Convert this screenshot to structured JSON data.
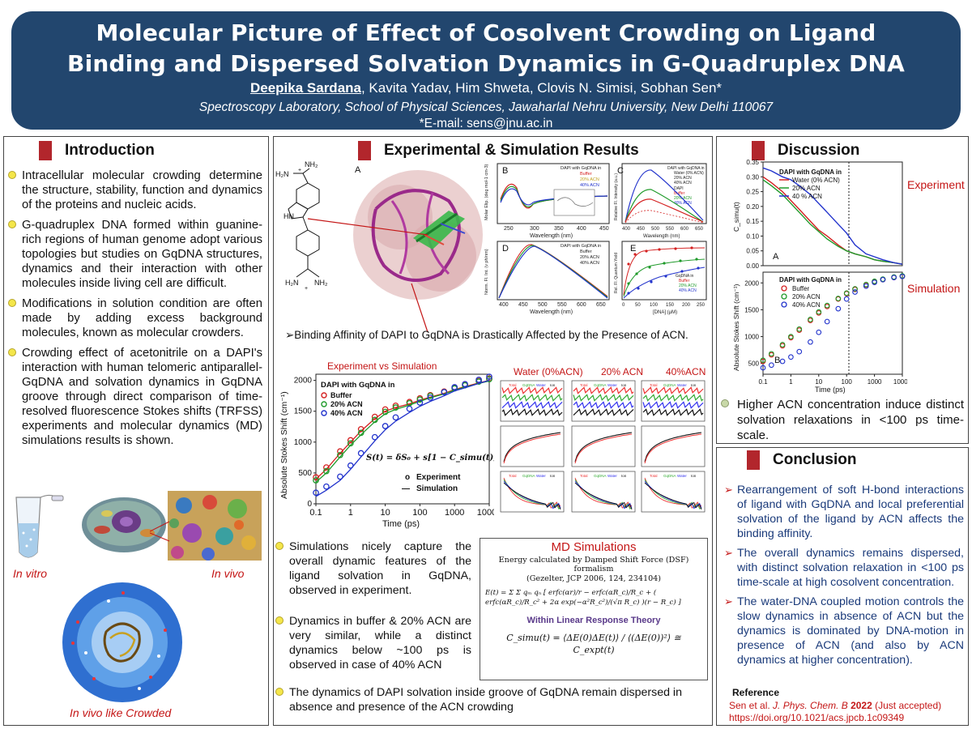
{
  "header": {
    "title_line1": "Molecular Picture of Effect of Cosolvent Crowding on Ligand",
    "title_line2": "Binding and Dispersed Solvation Dynamics in G-Quadruplex DNA",
    "first_author": "Deepika Sardana",
    "other_authors": ", Kavita Yadav, Him Shweta, Clovis N. Simisi, Sobhan Sen*",
    "affiliation": "Spectroscopy Laboratory, School of Physical Sciences, Jawaharlal Nehru University, New Delhi 110067",
    "email": "*E-mail: sens@jnu.ac.in"
  },
  "intro": {
    "heading": "Introduction",
    "bullets": [
      "Intracellular molecular crowding determine the structure, stability, function and dynamics of the proteins and nucleic acids.",
      "G-quadruplex DNA formed within guanine-rich regions of human genome adopt various topologies but studies on GqDNA structures, dynamics and their interaction with other molecules inside living cell are difficult.",
      "Modifications in solution condition are often made by adding excess background molecules, known as molecular crowders.",
      "Crowding effect of acetonitrile on a DAPI's interaction with human telomeric antiparallel-GqDNA and solvation dynamics in GqDNA groove through direct comparison of time-resolved fluorescence Stokes shifts (TRFSS) experiments and molecular dynamics (MD) simulations results is shown."
    ],
    "in_vitro": "In vitro",
    "in_vivo": "In vivo",
    "in_vivo_crowded": "In vivo like Crowded"
  },
  "results": {
    "heading": "Experimental & Simulation Results",
    "panel_a": "A",
    "panel_b": "B",
    "panel_c": "C",
    "panel_d": "D",
    "panel_e": "E",
    "binding_caption": "➢Binding Affinity of DAPI to GqDNA is Drastically Affected by the Presence of ACN.",
    "dapi_legend": "DAPI with GqDNA in",
    "buffer": "Buffer",
    "acn20": "20% ACN",
    "acn40": "40% ACN",
    "gqdna_in": "GqDNA in",
    "b_ylabel": "Molar Elip. (deg mol-1 cm-3)",
    "cd_xlabel": "Wavelength (nm)",
    "b_xticks": [
      "250",
      "300",
      "350",
      "400",
      "450"
    ],
    "c_ylabel": "Relative Fl. Intensity (a.u.)",
    "c_xticks": [
      "400",
      "450",
      "500",
      "550",
      "600",
      "650"
    ],
    "c_legend_water": "Water (0% ACN)",
    "c_legend_dapi": "DAPI",
    "d_ylabel": "Norm. Fl. Int. (ν ph/nm)",
    "d_xticks": [
      "400",
      "450",
      "500",
      "550",
      "600",
      "650"
    ],
    "e_ylabel": "Rel. Fl. Quantum Yield",
    "e_xlabel": "[DNA] (μM)",
    "e_xticks": [
      "0",
      "50",
      "100",
      "150",
      "200",
      "250"
    ],
    "exp_vs_sim": "Experiment vs Simulation",
    "ylabel_stokes": "Absolute Stokes Shift (cm⁻¹)",
    "xlabel_time": "Time (ps)",
    "stokes_yticks": [
      "0",
      "500",
      "1000",
      "1500",
      "2000"
    ],
    "stokes_xticks": [
      "0.1",
      "1",
      "10",
      "100",
      "1000",
      "10000"
    ],
    "equation": "S(t) = δS₀ + s[1 − C_simu(t)]",
    "legend_experiment": "Experiment",
    "legend_simulation": "Simulation",
    "legend_o": "o",
    "legend_dash": "—",
    "md_col_water": "Water (0%ACN)",
    "md_col_20": "20% ACN",
    "md_col_40": "40%ACN",
    "md_sub_labels": [
      "Total",
      "GqDNA",
      "Water",
      "Ion"
    ],
    "bullets": [
      "Simulations nicely capture the overall dynamic features of the ligand solvation in GqDNA, observed in experiment.",
      "Dynamics in buffer & 20% ACN are very similar, while a distinct dynamics below ~100 ps is observed in case of 40% ACN"
    ],
    "final_bullet": "The dynamics of DAPI solvation inside groove of GqDNA remain dispersed in absence and presence of the ACN crowding"
  },
  "md_box": {
    "title": "MD Simulations",
    "line1": "Energy calculated by Damped Shift Force (DSF) formalism",
    "line2": "(Gezelter, JCP 2006, 124, 234104)",
    "energy_eq": "E(t) = Σ Σ qₘ qₙ [ erfc(αr)/r − erfc(αR_c)/R_c + ( erfc(αR_c)/R_c² + 2α exp(−α²R_c²)/(√π R_c) )(r − R_c) ]",
    "within": "Within Linear Response Theory",
    "csimu_eq": "C_simu(t) = ⟨ΔE(0)ΔE(t)⟩ / ⟨(ΔE(0))²⟩ ≅ C_expt(t)"
  },
  "discussion": {
    "heading": "Discussion",
    "experiment": "Experiment",
    "simulation": "Simulation",
    "legend_title": "DAPI with GqDNA in",
    "water": "Water (0% ACN)",
    "acn20": "20% ACN",
    "acn40": "40 % ACN",
    "sim_legend_title": "DAPI with GqDNA in",
    "sim_buffer": "Buffer",
    "sim_acn20": "20% ACN",
    "sim_acn40": "40% ACN",
    "panel_a": "A",
    "panel_b": "B",
    "ylabel_top": "C_simu(t)",
    "ylabel_bottom": "Absolute Stokes Shift (cm⁻¹)",
    "xlabel": "Time (ps)",
    "yticks_top": [
      "0.35",
      "0.30",
      "0.25",
      "0.20",
      "0.15",
      "0.10",
      "0.05",
      "0.00"
    ],
    "yticks_bottom": [
      "500",
      "1000",
      "1500",
      "2000"
    ],
    "xticks": [
      "0.1",
      "1",
      "10",
      "100",
      "1000",
      "10000"
    ],
    "bullet": "Higher ACN concentration induce distinct solvation relaxations in <100 ps time-scale."
  },
  "conclusion": {
    "heading": "Conclusion",
    "bullets": [
      "Rearrangement of soft H-bond interactions of ligand with GqDNA and local preferential solvation of the ligand by ACN affects the binding affinity.",
      "The overall dynamics remains dispersed, with distinct solvation relaxation in <100 ps time-scale at high cosolvent concentration.",
      "The water-DNA coupled motion controls the slow dynamics in absence of ACN but the dynamics is dominated by DNA-motion in presence of ACN (and also by ACN dynamics at higher concentration)."
    ],
    "reference_label": "Reference",
    "ref_authors": "Sen et al. ",
    "ref_journal": "J. Phys. Chem. B",
    "ref_year": " 2022",
    "ref_note": " (Just accepted)",
    "ref_doi": "https://doi.org/10.1021/acs.jpcb.1c09349"
  },
  "colors": {
    "header_bg": "#22466e",
    "accent_red": "#b2262c",
    "buffer": "#d42020",
    "acn20": "#1f9a2a",
    "acn40": "#2233cc"
  },
  "chart_data": [
    {
      "type": "scatter",
      "title": "Experiment vs Simulation",
      "xlabel": "Time (ps)",
      "ylabel": "Absolute Stokes Shift (cm-1)",
      "xscale": "log",
      "xlim": [
        0.1,
        10000
      ],
      "ylim": [
        0,
        2100
      ],
      "x": [
        0.1,
        0.2,
        0.5,
        1,
        2,
        5,
        10,
        20,
        50,
        100,
        200,
        500,
        1000,
        2000,
        5000,
        10000
      ],
      "series": [
        {
          "name": "Buffer",
          "values": [
            400,
            560,
            820,
            1000,
            1180,
            1380,
            1500,
            1560,
            1620,
            1680,
            1730,
            1790,
            1850,
            1900,
            1960,
            2000
          ]
        },
        {
          "name": "20% ACN",
          "values": [
            350,
            500,
            760,
            950,
            1120,
            1330,
            1460,
            1530,
            1600,
            1660,
            1720,
            1780,
            1840,
            1890,
            1950,
            1990
          ]
        },
        {
          "name": "40% ACN",
          "values": [
            120,
            220,
            380,
            560,
            760,
            1020,
            1200,
            1340,
            1480,
            1580,
            1660,
            1750,
            1830,
            1880,
            1950,
            2000
          ]
        }
      ]
    },
    {
      "type": "line",
      "title": "Discussion A",
      "xlabel": "Time (ps)",
      "ylabel": "C_simu(t)",
      "xscale": "log",
      "xlim": [
        0.1,
        10000
      ],
      "ylim": [
        0,
        0.35
      ],
      "x": [
        0.1,
        0.2,
        0.5,
        1,
        2,
        5,
        10,
        20,
        50,
        100,
        200,
        500,
        1000,
        2000,
        5000,
        10000
      ],
      "series": [
        {
          "name": "Water (0% ACN)",
          "values": [
            0.3,
            0.28,
            0.25,
            0.22,
            0.19,
            0.15,
            0.12,
            0.1,
            0.07,
            0.05,
            0.04,
            0.03,
            0.02,
            0.015,
            0.01,
            0.005
          ]
        },
        {
          "name": "20% ACN",
          "values": [
            0.29,
            0.27,
            0.24,
            0.21,
            0.18,
            0.14,
            0.115,
            0.09,
            0.065,
            0.05,
            0.04,
            0.03,
            0.02,
            0.015,
            0.01,
            0.005
          ]
        },
        {
          "name": "40 % ACN",
          "values": [
            0.33,
            0.32,
            0.3,
            0.29,
            0.27,
            0.24,
            0.21,
            0.18,
            0.14,
            0.11,
            0.07,
            0.04,
            0.03,
            0.02,
            0.01,
            0.005
          ]
        }
      ]
    },
    {
      "type": "scatter",
      "title": "Discussion B",
      "xlabel": "Time (ps)",
      "ylabel": "Absolute Stokes Shift (cm-1)",
      "xscale": "log",
      "xlim": [
        0.1,
        10000
      ],
      "ylim": [
        300,
        2200
      ],
      "x": [
        0.1,
        0.2,
        0.5,
        1,
        2,
        5,
        10,
        20,
        50,
        100,
        200,
        500,
        1000,
        2000,
        5000,
        10000
      ],
      "series": [
        {
          "name": "Buffer",
          "values": [
            540,
            660,
            830,
            980,
            1120,
            1300,
            1440,
            1560,
            1700,
            1800,
            1880,
            1960,
            2020,
            2060,
            2100,
            2120
          ]
        },
        {
          "name": "20% ACN",
          "values": [
            560,
            680,
            850,
            1000,
            1140,
            1320,
            1460,
            1580,
            1710,
            1810,
            1890,
            1970,
            2030,
            2070,
            2110,
            2130
          ]
        },
        {
          "name": "40% ACN",
          "values": [
            420,
            470,
            540,
            620,
            720,
            900,
            1080,
            1280,
            1520,
            1700,
            1830,
            1940,
            2010,
            2060,
            2100,
            2120
          ]
        }
      ]
    }
  ]
}
